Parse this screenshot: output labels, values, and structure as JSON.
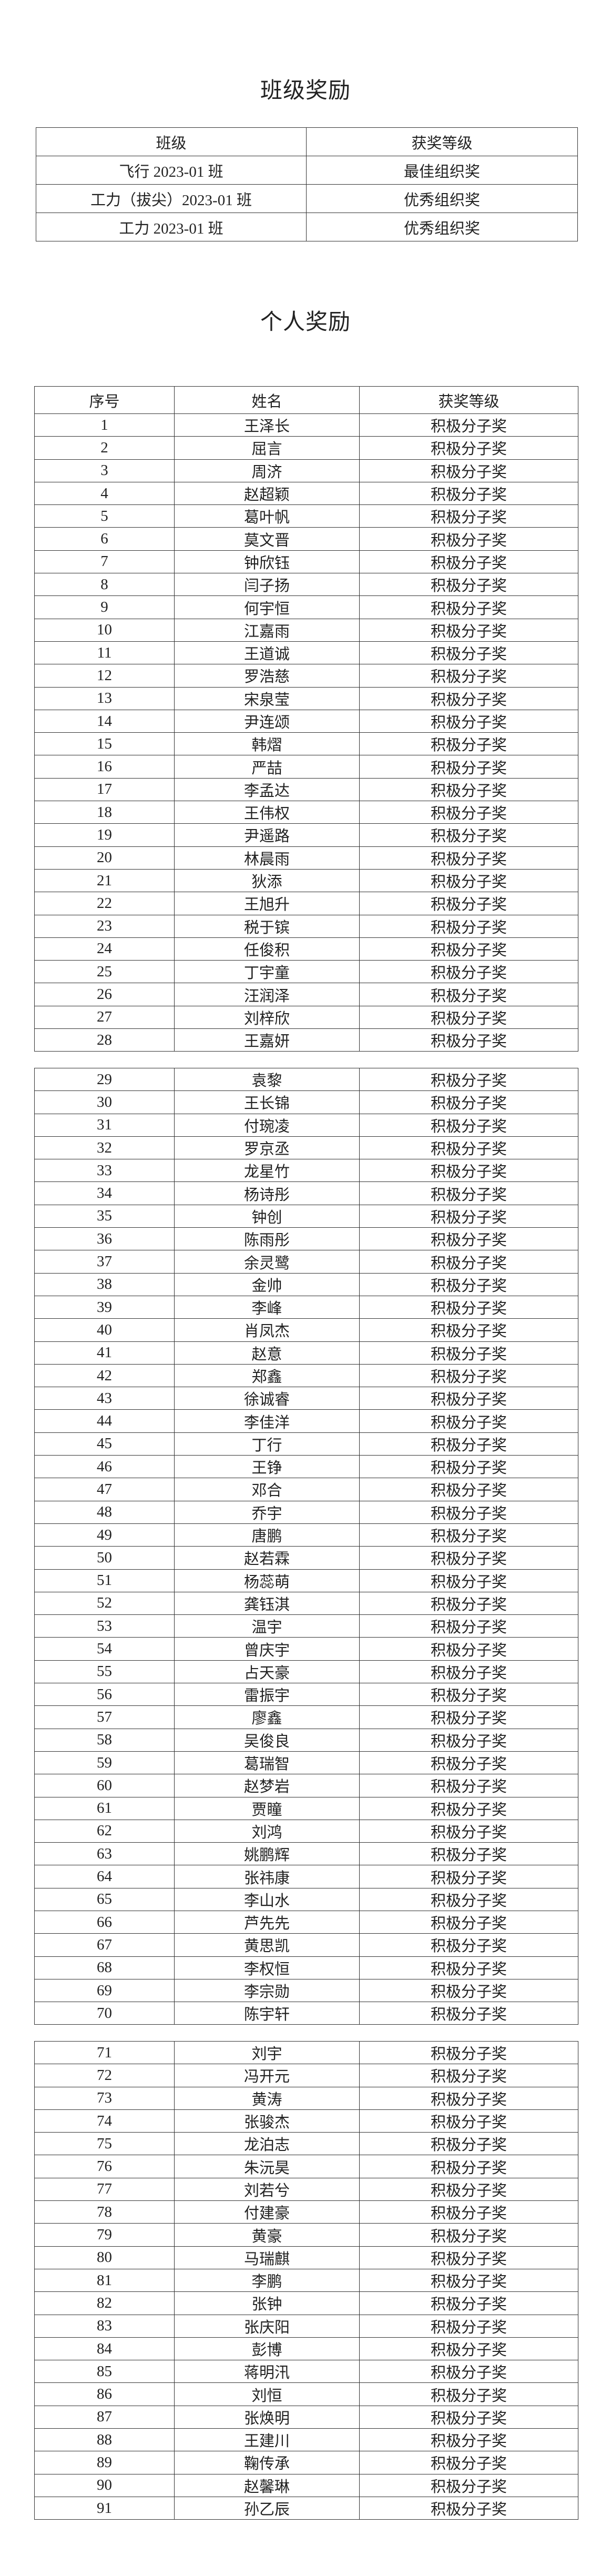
{
  "class_awards": {
    "title": "班级奖励",
    "headers": [
      "班级",
      "获奖等级"
    ],
    "rows": [
      {
        "class": "飞行 2023-01 班",
        "award": "最佳组织奖"
      },
      {
        "class": "工力（拔尖）2023-01 班",
        "award": "优秀组织奖"
      },
      {
        "class": "工力 2023-01 班",
        "award": "优秀组织奖"
      }
    ]
  },
  "individual_awards": {
    "title": "个人奖励",
    "headers": [
      "序号",
      "姓名",
      "获奖等级"
    ],
    "groups": [
      [
        {
          "no": "1",
          "name": "王泽长",
          "award": "积极分子奖"
        },
        {
          "no": "2",
          "name": "屈言",
          "award": "积极分子奖"
        },
        {
          "no": "3",
          "name": "周济",
          "award": "积极分子奖"
        },
        {
          "no": "4",
          "name": "赵超颖",
          "award": "积极分子奖"
        },
        {
          "no": "5",
          "name": "葛叶帆",
          "award": "积极分子奖"
        },
        {
          "no": "6",
          "name": "莫文晋",
          "award": "积极分子奖"
        },
        {
          "no": "7",
          "name": "钟欣钰",
          "award": "积极分子奖"
        },
        {
          "no": "8",
          "name": "闫子扬",
          "award": "积极分子奖"
        },
        {
          "no": "9",
          "name": "何宇恒",
          "award": "积极分子奖"
        },
        {
          "no": "10",
          "name": "江嘉雨",
          "award": "积极分子奖"
        },
        {
          "no": "11",
          "name": "王道诚",
          "award": "积极分子奖"
        },
        {
          "no": "12",
          "name": "罗浩慈",
          "award": "积极分子奖"
        },
        {
          "no": "13",
          "name": "宋泉莹",
          "award": "积极分子奖"
        },
        {
          "no": "14",
          "name": "尹连颂",
          "award": "积极分子奖"
        },
        {
          "no": "15",
          "name": "韩熠",
          "award": "积极分子奖"
        },
        {
          "no": "16",
          "name": "严喆",
          "award": "积极分子奖"
        },
        {
          "no": "17",
          "name": "李孟达",
          "award": "积极分子奖"
        },
        {
          "no": "18",
          "name": "王伟权",
          "award": "积极分子奖"
        },
        {
          "no": "19",
          "name": "尹遥路",
          "award": "积极分子奖"
        },
        {
          "no": "20",
          "name": "林晨雨",
          "award": "积极分子奖"
        },
        {
          "no": "21",
          "name": "狄添",
          "award": "积极分子奖"
        },
        {
          "no": "22",
          "name": "王旭升",
          "award": "积极分子奖"
        },
        {
          "no": "23",
          "name": "税于镔",
          "award": "积极分子奖"
        },
        {
          "no": "24",
          "name": "任俊积",
          "award": "积极分子奖"
        },
        {
          "no": "25",
          "name": "丁宇童",
          "award": "积极分子奖"
        },
        {
          "no": "26",
          "name": "汪润泽",
          "award": "积极分子奖"
        },
        {
          "no": "27",
          "name": "刘梓欣",
          "award": "积极分子奖"
        },
        {
          "no": "28",
          "name": "王嘉妍",
          "award": "积极分子奖"
        }
      ],
      [
        {
          "no": "29",
          "name": "袁黎",
          "award": "积极分子奖"
        },
        {
          "no": "30",
          "name": "王长锦",
          "award": "积极分子奖"
        },
        {
          "no": "31",
          "name": "付琬凌",
          "award": "积极分子奖"
        },
        {
          "no": "32",
          "name": "罗京丞",
          "award": "积极分子奖"
        },
        {
          "no": "33",
          "name": "龙星竹",
          "award": "积极分子奖"
        },
        {
          "no": "34",
          "name": "杨诗彤",
          "award": "积极分子奖"
        },
        {
          "no": "35",
          "name": "钟创",
          "award": "积极分子奖"
        },
        {
          "no": "36",
          "name": "陈雨彤",
          "award": "积极分子奖"
        },
        {
          "no": "37",
          "name": "余灵鹭",
          "award": "积极分子奖"
        },
        {
          "no": "38",
          "name": "金帅",
          "award": "积极分子奖"
        },
        {
          "no": "39",
          "name": "李峰",
          "award": "积极分子奖"
        },
        {
          "no": "40",
          "name": "肖凤杰",
          "award": "积极分子奖"
        },
        {
          "no": "41",
          "name": "赵意",
          "award": "积极分子奖"
        },
        {
          "no": "42",
          "name": "郑鑫",
          "award": "积极分子奖"
        },
        {
          "no": "43",
          "name": "徐诚睿",
          "award": "积极分子奖"
        },
        {
          "no": "44",
          "name": "李佳洋",
          "award": "积极分子奖"
        },
        {
          "no": "45",
          "name": "丁行",
          "award": "积极分子奖"
        },
        {
          "no": "46",
          "name": "王铮",
          "award": "积极分子奖"
        },
        {
          "no": "47",
          "name": "邓合",
          "award": "积极分子奖"
        },
        {
          "no": "48",
          "name": "乔宇",
          "award": "积极分子奖"
        },
        {
          "no": "49",
          "name": "唐鹏",
          "award": "积极分子奖"
        },
        {
          "no": "50",
          "name": "赵若霖",
          "award": "积极分子奖"
        },
        {
          "no": "51",
          "name": "杨蕊萌",
          "award": "积极分子奖"
        },
        {
          "no": "52",
          "name": "龚钰淇",
          "award": "积极分子奖"
        },
        {
          "no": "53",
          "name": "温宇",
          "award": "积极分子奖"
        },
        {
          "no": "54",
          "name": "曾庆宇",
          "award": "积极分子奖"
        },
        {
          "no": "55",
          "name": "占天豪",
          "award": "积极分子奖"
        },
        {
          "no": "56",
          "name": "雷振宇",
          "award": "积极分子奖"
        },
        {
          "no": "57",
          "name": "廖鑫",
          "award": "积极分子奖"
        },
        {
          "no": "58",
          "name": "吴俊良",
          "award": "积极分子奖"
        },
        {
          "no": "59",
          "name": "葛瑞智",
          "award": "积极分子奖"
        },
        {
          "no": "60",
          "name": "赵梦岩",
          "award": "积极分子奖"
        },
        {
          "no": "61",
          "name": "贾瞳",
          "award": "积极分子奖"
        },
        {
          "no": "62",
          "name": "刘鸿",
          "award": "积极分子奖"
        },
        {
          "no": "63",
          "name": "姚鹏辉",
          "award": "积极分子奖"
        },
        {
          "no": "64",
          "name": "张祎康",
          "award": "积极分子奖"
        },
        {
          "no": "65",
          "name": "李山水",
          "award": "积极分子奖"
        },
        {
          "no": "66",
          "name": "芦先先",
          "award": "积极分子奖"
        },
        {
          "no": "67",
          "name": "黄思凯",
          "award": "积极分子奖"
        },
        {
          "no": "68",
          "name": "李权恒",
          "award": "积极分子奖"
        },
        {
          "no": "69",
          "name": "李宗勋",
          "award": "积极分子奖"
        },
        {
          "no": "70",
          "name": "陈宇轩",
          "award": "积极分子奖"
        }
      ],
      [
        {
          "no": "71",
          "name": "刘宇",
          "award": "积极分子奖"
        },
        {
          "no": "72",
          "name": "冯开元",
          "award": "积极分子奖"
        },
        {
          "no": "73",
          "name": "黄涛",
          "award": "积极分子奖"
        },
        {
          "no": "74",
          "name": "张骏杰",
          "award": "积极分子奖"
        },
        {
          "no": "75",
          "name": "龙泊志",
          "award": "积极分子奖"
        },
        {
          "no": "76",
          "name": "朱沅昊",
          "award": "积极分子奖"
        },
        {
          "no": "77",
          "name": "刘若兮",
          "award": "积极分子奖"
        },
        {
          "no": "78",
          "name": "付建豪",
          "award": "积极分子奖"
        },
        {
          "no": "79",
          "name": "黄豪",
          "award": "积极分子奖"
        },
        {
          "no": "80",
          "name": "马瑞麒",
          "award": "积极分子奖"
        },
        {
          "no": "81",
          "name": "李鹏",
          "award": "积极分子奖"
        },
        {
          "no": "82",
          "name": "张钟",
          "award": "积极分子奖"
        },
        {
          "no": "83",
          "name": "张庆阳",
          "award": "积极分子奖"
        },
        {
          "no": "84",
          "name": "彭博",
          "award": "积极分子奖"
        },
        {
          "no": "85",
          "name": "蒋明汛",
          "award": "积极分子奖"
        },
        {
          "no": "86",
          "name": "刘恒",
          "award": "积极分子奖"
        },
        {
          "no": "87",
          "name": "张焕明",
          "award": "积极分子奖"
        },
        {
          "no": "88",
          "name": "王建川",
          "award": "积极分子奖"
        },
        {
          "no": "89",
          "name": "鞠传承",
          "award": "积极分子奖"
        },
        {
          "no": "90",
          "name": "赵馨琳",
          "award": "积极分子奖"
        },
        {
          "no": "91",
          "name": "孙乙辰",
          "award": "积极分子奖"
        }
      ]
    ]
  }
}
